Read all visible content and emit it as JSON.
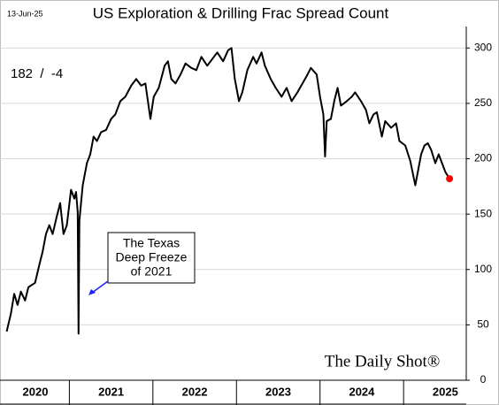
{
  "chart_data": {
    "type": "line",
    "title": "US Exploration & Drilling Frac Spread Count",
    "date": "13-Jun-25",
    "latest": "182  /  -4",
    "annotation": [
      "The Texas",
      "Deep Freeze",
      "of 2021"
    ],
    "source": "The Daily Shot®",
    "x": [
      2020.25,
      2020.3,
      2020.34,
      2020.38,
      2020.42,
      2020.47,
      2020.51,
      2020.55,
      2020.59,
      2020.64,
      2020.68,
      2020.72,
      2020.76,
      2020.8,
      2020.85,
      2020.89,
      2020.93,
      2020.97,
      2021.02,
      2021.06,
      2021.08,
      2021.1,
      2021.11,
      2021.12,
      2021.16,
      2021.21,
      2021.25,
      2021.29,
      2021.33,
      2021.38,
      2021.44,
      2021.5,
      2021.55,
      2021.61,
      2021.67,
      2021.74,
      2021.8,
      2021.86,
      2021.91,
      2021.97,
      2022.01,
      2022.07,
      2022.14,
      2022.18,
      2022.22,
      2022.27,
      2022.33,
      2022.39,
      2022.46,
      2022.52,
      2022.58,
      2022.65,
      2022.71,
      2022.77,
      2022.84,
      2022.9,
      2022.94,
      2022.98,
      2023.03,
      2023.07,
      2023.13,
      2023.2,
      2023.24,
      2023.3,
      2023.34,
      2023.41,
      2023.47,
      2023.54,
      2023.6,
      2023.66,
      2023.73,
      2023.79,
      2023.85,
      2023.89,
      2023.96,
      2024.0,
      2024.04,
      2024.06,
      2024.08,
      2024.13,
      2024.17,
      2024.21,
      2024.25,
      2024.32,
      2024.38,
      2024.42,
      2024.49,
      2024.55,
      2024.59,
      2024.64,
      2024.68,
      2024.74,
      2024.78,
      2024.85,
      2024.91,
      2024.95,
      2025.02,
      2025.08,
      2025.14,
      2025.21,
      2025.25,
      2025.29,
      2025.33,
      2025.38,
      2025.42,
      2025.46,
      2025.5,
      2025.55
    ],
    "series": [
      {
        "name": "Frac spread count",
        "color": "#000000",
        "values": [
          44,
          60,
          78,
          68,
          80,
          72,
          84,
          86,
          88,
          104,
          116,
          132,
          140,
          132,
          148,
          160,
          132,
          140,
          172,
          164,
          170,
          152,
          42,
          144,
          176,
          196,
          204,
          220,
          216,
          224,
          226,
          236,
          240,
          252,
          256,
          266,
          272,
          266,
          268,
          236,
          256,
          264,
          284,
          288,
          272,
          268,
          276,
          286,
          282,
          280,
          292,
          284,
          290,
          296,
          288,
          298,
          300,
          272,
          252,
          260,
          280,
          292,
          286,
          296,
          284,
          272,
          264,
          256,
          264,
          252,
          260,
          268,
          276,
          282,
          276,
          256,
          240,
          202,
          234,
          236,
          252,
          264,
          248,
          252,
          256,
          260,
          252,
          244,
          232,
          240,
          242,
          220,
          234,
          228,
          232,
          216,
          212,
          198,
          176,
          204,
          212,
          214,
          208,
          196,
          204,
          196,
          188,
          182
        ]
      }
    ],
    "marker_color": "#ff0000",
    "xlim": [
      2020.17,
      2025.75
    ],
    "xticks": [
      {
        "value": 2020.5,
        "label": "2020"
      },
      {
        "value": 2021.5,
        "label": "2021"
      },
      {
        "value": 2022.5,
        "label": "2022"
      },
      {
        "value": 2023.5,
        "label": "2023"
      },
      {
        "value": 2024.5,
        "label": "2024"
      },
      {
        "value": 2025.5,
        "label": "2025"
      }
    ],
    "ylim": [
      0,
      313
    ],
    "yticks": [
      0,
      50,
      100,
      150,
      200,
      250,
      300
    ],
    "grid": true
  }
}
